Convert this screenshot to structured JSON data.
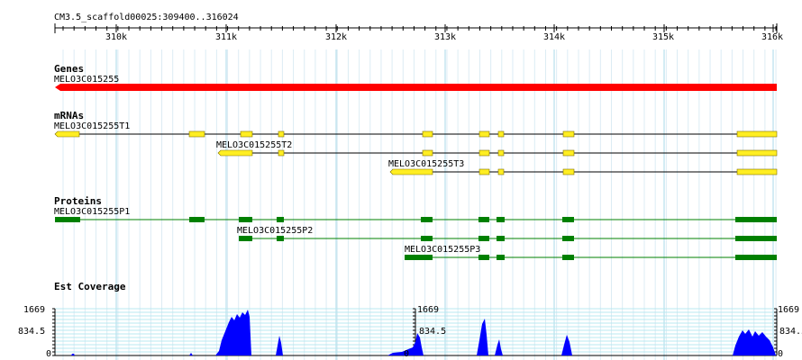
{
  "ruler": {
    "location": "CM3.5_scaffold00025:309400..316024",
    "ticks": [
      "310k",
      "311k",
      "312k",
      "313k",
      "314k",
      "315k",
      "316k"
    ]
  },
  "tracks": {
    "genes": {
      "title": "Genes",
      "feature_label": "MELO3C015255"
    },
    "mrnas": {
      "title": "mRNAs",
      "labels": [
        "MELO3C015255T1",
        "MELO3C015255T2",
        "MELO3C015255T3"
      ]
    },
    "proteins": {
      "title": "Proteins",
      "labels": [
        "MELO3C015255P1",
        "MELO3C015255P2",
        "MELO3C015255P3"
      ]
    },
    "coverage": {
      "title": "Est Coverage",
      "axis_labels": [
        "1669",
        "834.5",
        "0"
      ]
    }
  },
  "colors": {
    "gene": "#ff0000",
    "mrna_exon": "#ffee22",
    "protein": "#008000",
    "coverage": "#0000ff",
    "grid": "#a8d8e8"
  }
}
